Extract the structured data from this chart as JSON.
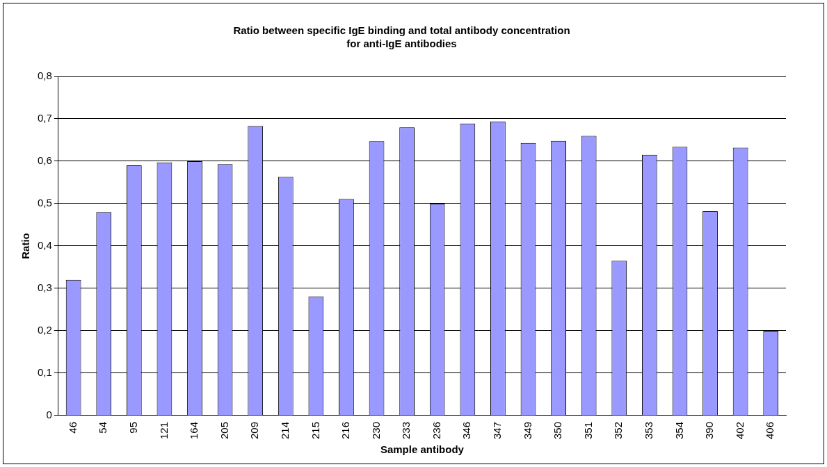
{
  "chart_data": {
    "type": "bar",
    "title": "Ratio between specific IgE binding and total antibody concentration\nfor anti-IgE antibodies",
    "xlabel": "Sample antibody",
    "ylabel": "Ratio",
    "categories": [
      "46",
      "54",
      "95",
      "121",
      "164",
      "205",
      "209",
      "214",
      "215",
      "216",
      "230",
      "233",
      "236",
      "346",
      "347",
      "349",
      "350",
      "351",
      "352",
      "353",
      "354",
      "390",
      "402",
      "406"
    ],
    "values": [
      0.32,
      0.48,
      0.59,
      0.597,
      0.6,
      0.593,
      0.683,
      0.563,
      0.281,
      0.511,
      0.647,
      0.68,
      0.5,
      0.689,
      0.694,
      0.643,
      0.648,
      0.66,
      0.365,
      0.615,
      0.634,
      0.482,
      0.632,
      0.2
    ],
    "color": "#9999ff",
    "ylim": [
      0,
      0.8
    ],
    "yticks": [
      {
        "value": 0,
        "label": "0"
      },
      {
        "value": 0.1,
        "label": "0,1"
      },
      {
        "value": 0.2,
        "label": "0,2"
      },
      {
        "value": 0.3,
        "label": "0,3"
      },
      {
        "value": 0.4,
        "label": "0,4"
      },
      {
        "value": 0.5,
        "label": "0,5"
      },
      {
        "value": 0.6,
        "label": "0,6"
      },
      {
        "value": 0.7,
        "label": "0,7"
      },
      {
        "value": 0.8,
        "label": "0,8"
      }
    ],
    "grid": "y"
  }
}
